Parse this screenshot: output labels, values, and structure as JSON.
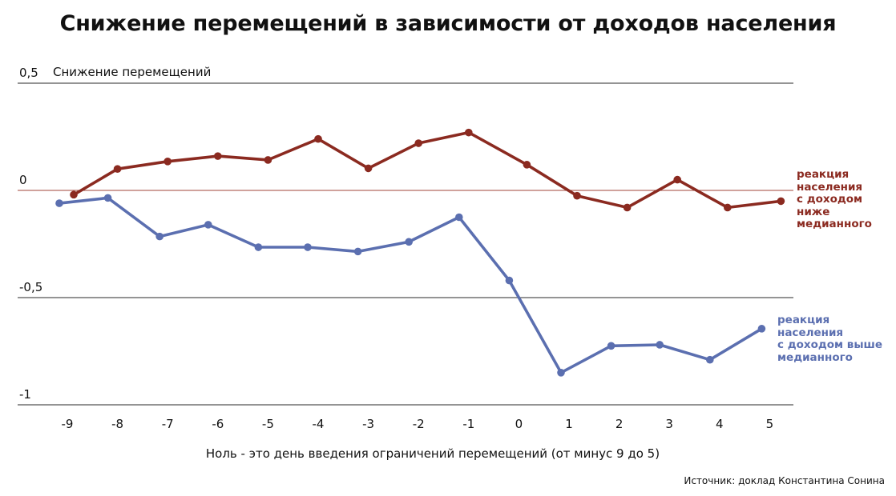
{
  "chart_data": {
    "type": "line",
    "title": "Снижение перемещений в зависимости от доходов населения",
    "ylabel": "Снижение перемещений",
    "xlabel": "Ноль - это день введения ограничений перемещений (от минус 9 до 5)",
    "x": [
      -9,
      -8,
      -7,
      -6,
      -5,
      -4,
      -3,
      -2,
      -1,
      0,
      1,
      2,
      3,
      4,
      5
    ],
    "x_tick_labels": [
      "-9",
      "-8",
      "-7",
      "-6",
      "-5",
      "-4",
      "-3",
      "-2",
      "-1",
      "0",
      "1",
      "2",
      "3",
      "4",
      "5"
    ],
    "ylim": [
      -1,
      0.5
    ],
    "y_ticks": [
      0.5,
      0,
      -0.5,
      -1
    ],
    "y_tick_labels": [
      "0,5",
      "0",
      "-0,5",
      "-1"
    ],
    "grid": true,
    "series": [
      {
        "name": "реакция населения с доходом ниже медианного",
        "label_lines": [
          "реакция",
          "населения",
          "с доходом",
          "ниже",
          "медианного"
        ],
        "color": "#8b2a20",
        "values": [
          -0.02,
          0.1,
          0.135,
          0.16,
          0.142,
          0.24,
          0.103,
          0.22,
          0.27,
          0.12,
          -0.025,
          -0.08,
          0.05,
          -0.08,
          -0.05
        ]
      },
      {
        "name": "реакция населения с доходом выше медианного",
        "label_lines": [
          "реакция",
          "населения",
          "с доходом выше",
          "медианного"
        ],
        "color": "#5b6fb0",
        "values": [
          -0.06,
          -0.035,
          -0.215,
          -0.16,
          -0.265,
          -0.265,
          -0.285,
          -0.24,
          -0.125,
          -0.42,
          -0.85,
          -0.725,
          -0.72,
          -0.79,
          -0.645
        ]
      }
    ],
    "source": "Источник: доклад Константина Сонина"
  }
}
